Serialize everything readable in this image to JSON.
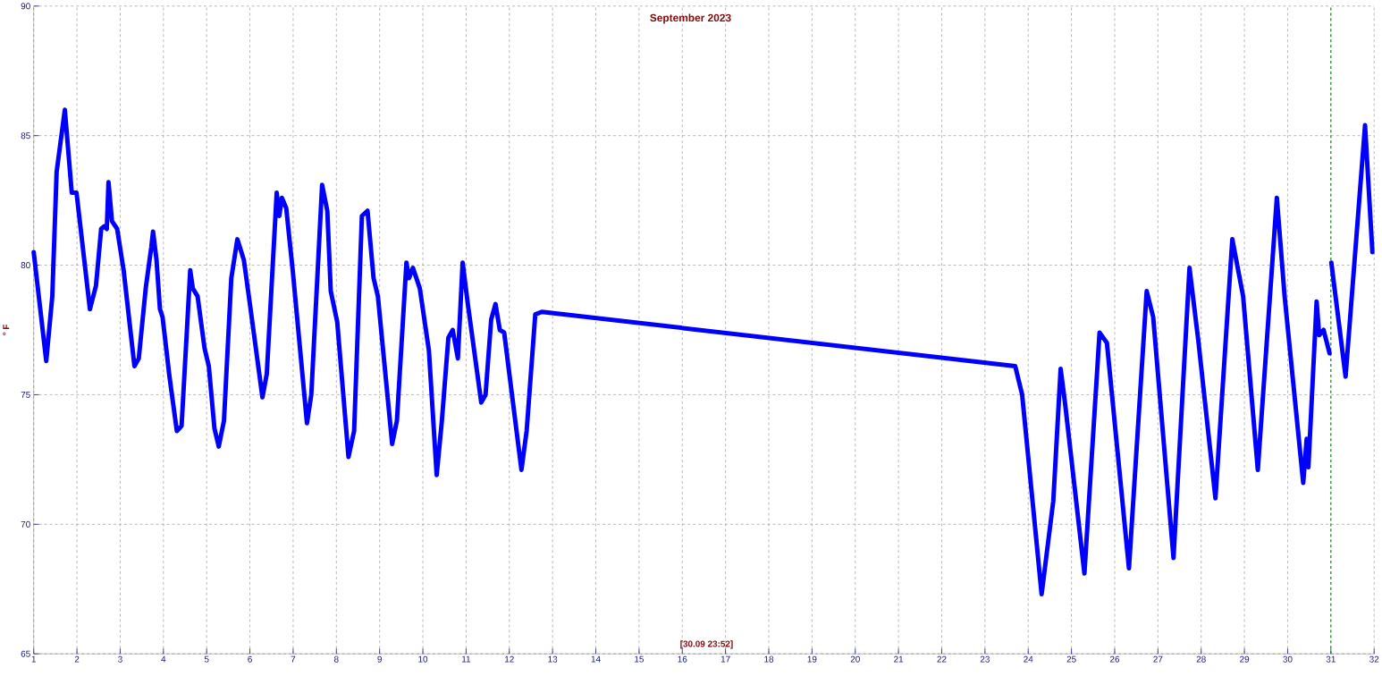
{
  "chart_data": {
    "type": "line",
    "title": "September 2023",
    "ylabel": "° F",
    "annotations": [
      "[30.09 23:52]"
    ],
    "x": [
      1.0,
      1.29,
      1.43,
      1.53,
      1.72,
      1.88,
      1.99,
      2.3,
      2.44,
      2.56,
      2.63,
      2.69,
      2.73,
      2.81,
      2.93,
      3.08,
      3.33,
      3.43,
      3.59,
      3.72,
      3.76,
      3.84,
      3.92,
      3.98,
      4.14,
      4.31,
      4.42,
      4.62,
      4.68,
      4.79,
      4.95,
      5.05,
      5.18,
      5.28,
      5.4,
      5.57,
      5.71,
      5.86,
      6.0,
      6.29,
      6.39,
      6.62,
      6.68,
      6.74,
      6.84,
      6.99,
      7.32,
      7.42,
      7.67,
      7.79,
      7.87,
      8.02,
      8.28,
      8.41,
      8.59,
      8.72,
      8.86,
      8.96,
      9.29,
      9.4,
      9.62,
      9.68,
      9.77,
      9.93,
      10.14,
      10.32,
      10.44,
      10.59,
      10.69,
      10.81,
      10.92,
      11.04,
      11.35,
      11.45,
      11.58,
      11.68,
      11.78,
      11.88,
      12.28,
      12.4,
      12.6,
      12.75,
      23.7,
      23.86,
      24.31,
      24.58,
      24.75,
      24.85,
      25.3,
      25.65,
      25.82,
      26.33,
      26.74,
      26.89,
      27.36,
      27.73,
      27.94,
      28.33,
      28.72,
      28.97,
      29.31,
      29.75,
      29.93,
      30.36,
      30.44,
      30.48,
      30.67,
      30.73,
      30.83,
      30.97,
      30.99,
      31.01,
      31.34,
      31.79,
      31.96
    ],
    "values": [
      80.5,
      76.3,
      78.8,
      83.6,
      86.0,
      82.8,
      82.8,
      78.3,
      79.2,
      81.4,
      81.5,
      81.4,
      83.2,
      81.7,
      81.4,
      79.8,
      76.1,
      76.4,
      79.1,
      80.7,
      81.3,
      80.2,
      78.3,
      78.0,
      75.7,
      73.6,
      73.8,
      79.8,
      79.1,
      78.8,
      76.8,
      76.1,
      73.7,
      73.0,
      74.0,
      79.5,
      81.0,
      80.2,
      78.5,
      74.9,
      75.8,
      82.8,
      81.9,
      82.6,
      82.2,
      79.8,
      73.9,
      75.0,
      83.1,
      82.1,
      79.0,
      77.8,
      72.6,
      73.6,
      81.9,
      82.1,
      79.5,
      78.8,
      73.1,
      74.0,
      80.1,
      79.5,
      79.9,
      79.1,
      76.7,
      71.9,
      74.0,
      77.2,
      77.5,
      76.4,
      80.1,
      78.5,
      74.7,
      75.0,
      77.9,
      78.5,
      77.5,
      77.4,
      72.1,
      73.6,
      78.1,
      78.2,
      76.1,
      75.0,
      67.3,
      70.9,
      76.0,
      74.7,
      68.1,
      77.4,
      77.0,
      68.3,
      79.0,
      78.0,
      68.7,
      79.9,
      77.0,
      71.0,
      81.0,
      78.8,
      72.1,
      82.6,
      78.8,
      71.6,
      73.3,
      72.2,
      78.6,
      77.3,
      77.5,
      76.6,
      null,
      80.1,
      75.7,
      85.4,
      80.5
    ],
    "color": "#0000ff",
    "xlim": [
      1,
      32
    ],
    "ylim": [
      65,
      90
    ],
    "xticks": [
      1,
      2,
      3,
      4,
      5,
      6,
      7,
      8,
      9,
      10,
      11,
      12,
      13,
      14,
      15,
      16,
      17,
      18,
      19,
      20,
      21,
      22,
      23,
      24,
      25,
      26,
      27,
      28,
      29,
      30,
      31,
      32
    ],
    "yticks": [
      65,
      70,
      75,
      80,
      85,
      90
    ],
    "grid": true,
    "ref_lines": [
      {
        "axis": "x",
        "value": 31,
        "color": "#008000",
        "line_style": "dashed"
      }
    ]
  }
}
